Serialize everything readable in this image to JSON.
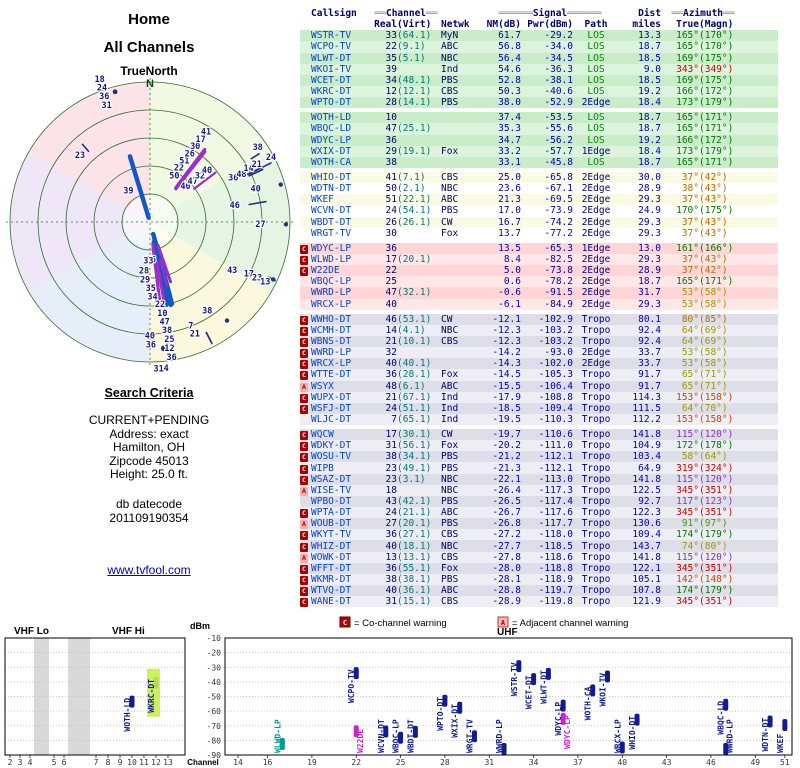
{
  "page": {
    "title": "Home",
    "subtitle": "All Channels",
    "orientation_label": "TrueNorth",
    "north": "N",
    "criteria_heading": "Search Criteria",
    "criteria_lines": [
      "CURRENT+PENDING",
      "Address: exact",
      "Hamilton, OH",
      "Zipcode 45013",
      "Height: 25.0 ft."
    ],
    "datecode_label": "db datecode",
    "datecode_value": "201109190354",
    "site_link": "www.tvfool.com"
  },
  "table_header": {
    "callsign": "Callsign",
    "channel": "Channel",
    "real": "Real",
    "virt": "(Virt)",
    "netwk": "Netwk",
    "signal": "Signal",
    "nm": "NM(dB)",
    "pwr": "Pwr(dBm)",
    "path": "Path",
    "dist": "Dist",
    "miles": "miles",
    "azimuth": "Azimuth",
    "az_true": "True",
    "az_magn": "(Magn)",
    "deco_ch": "══",
    "deco_sig": "══════",
    "deco_az": "══"
  },
  "legend": {
    "c_symbol": "C",
    "c_text": "= Co-channel warning",
    "a_symbol": "A",
    "a_text": "= Adjacent channel warning"
  },
  "charts": {
    "ylabel": "dBm",
    "xlabel": "Channel",
    "yticks": [
      -10,
      -20,
      -30,
      -40,
      -50,
      -60,
      -70,
      -80,
      -90
    ],
    "vhf_lo_title": "VHF Lo",
    "vhf_hi_title": "VHF Hi",
    "uhf_title": "UHF",
    "vhf_channels": [
      2,
      3,
      4,
      5,
      6,
      7,
      8,
      9,
      10,
      11,
      12,
      13
    ],
    "uhf_tick_channels": [
      14,
      16,
      19,
      22,
      25,
      28,
      31,
      34,
      37,
      40,
      43,
      46,
      49,
      51
    ]
  },
  "chart_data": {
    "type": [
      "table",
      "scatter",
      "bar"
    ],
    "radar": {
      "angle_field": "azt",
      "radius_field": "mi",
      "units": "degrees-true / miles"
    },
    "bar_panels": {
      "x_field": "ch",
      "y_field": "pwr",
      "y_units": "dBm",
      "ylim": [
        -90,
        -10
      ],
      "panels": [
        "VHF 2-13",
        "UHF 14-51"
      ]
    },
    "source": "stations"
  },
  "stations": [
    {
      "m": "",
      "call": "WSTR-TV",
      "ch": 33,
      "virt": "64.1",
      "net": "MyN",
      "nm": 61.7,
      "pwr": -29.2,
      "path": "LOS",
      "mi": 13.3,
      "azt": 165,
      "azm": 170,
      "grp": 1,
      "col": "#007700"
    },
    {
      "m": "",
      "call": "WCPO-TV",
      "ch": 22,
      "virt": "9.1",
      "net": "ABC",
      "nm": 56.8,
      "pwr": -34.0,
      "path": "LOS",
      "mi": 18.7,
      "azt": 165,
      "azm": 170,
      "grp": 1,
      "col": "#007700"
    },
    {
      "m": "",
      "call": "WLWT-DT",
      "ch": 35,
      "virt": "5.1",
      "net": "NBC",
      "nm": 56.4,
      "pwr": -34.5,
      "path": "LOS",
      "mi": 18.5,
      "azt": 169,
      "azm": 175,
      "grp": 1,
      "col": "#007700"
    },
    {
      "m": "",
      "call": "WKOI-TV",
      "ch": 39,
      "virt": "",
      "net": "Ind",
      "nm": 54.6,
      "pwr": -36.3,
      "path": "LOS",
      "mi": 9.0,
      "azt": 343,
      "azm": 349,
      "grp": 1,
      "col": "#cc0000"
    },
    {
      "m": "",
      "call": "WCET-DT",
      "ch": 34,
      "virt": "48.1",
      "net": "PBS",
      "nm": 52.8,
      "pwr": -38.1,
      "path": "LOS",
      "mi": 18.5,
      "azt": 169,
      "azm": 175,
      "grp": 1,
      "col": "#007700"
    },
    {
      "m": "",
      "call": "WKRC-DT",
      "ch": 12,
      "virt": "12.1",
      "net": "CBS",
      "nm": 50.3,
      "pwr": -40.6,
      "path": "LOS",
      "mi": 19.2,
      "azt": 166,
      "azm": 172,
      "grp": 1,
      "col": "#007700",
      "hl": true
    },
    {
      "m": "",
      "call": "WPTO-DT",
      "ch": 28,
      "virt": "14.1",
      "net": "PBS",
      "nm": 38.0,
      "pwr": -52.9,
      "path": "2Edge",
      "mi": 18.4,
      "azt": 173,
      "azm": 179,
      "grp": 1,
      "col": "#007700"
    },
    {
      "m": "",
      "call": "WOTH-LD",
      "ch": 10,
      "virt": "",
      "net": "",
      "nm": 37.4,
      "pwr": -53.5,
      "path": "LOS",
      "mi": 18.7,
      "azt": 165,
      "azm": 171,
      "grp": 2,
      "col": "#007700"
    },
    {
      "m": "",
      "call": "WBQC-LD",
      "ch": 47,
      "virt": "25.1",
      "net": "",
      "nm": 35.3,
      "pwr": -55.6,
      "path": "LOS",
      "mi": 18.7,
      "azt": 165,
      "azm": 171,
      "grp": 2,
      "col": "#007700"
    },
    {
      "m": "",
      "call": "WDYC-LP",
      "ch": 36,
      "virt": "",
      "net": "",
      "nm": 34.7,
      "pwr": -56.2,
      "path": "LOS",
      "mi": 19.2,
      "azt": 166,
      "azm": 172,
      "grp": 2,
      "col": "#007700"
    },
    {
      "m": "",
      "call": "WXIX-DT",
      "ch": 29,
      "virt": "19.1",
      "net": "Fox",
      "nm": 33.2,
      "pwr": -57.7,
      "path": "1Edge",
      "mi": 18.4,
      "azt": 173,
      "azm": 179,
      "grp": 2,
      "col": "#007700"
    },
    {
      "m": "",
      "call": "WOTH-CA",
      "ch": 38,
      "virt": "",
      "net": "",
      "nm": 33.1,
      "pwr": -45.8,
      "path": "LOS",
      "mi": 18.7,
      "azt": 165,
      "azm": 171,
      "grp": 2,
      "col": "#007700"
    },
    {
      "m": "",
      "call": "WHIO-DT",
      "ch": 41,
      "virt": "7.1",
      "net": "CBS",
      "nm": 25.0,
      "pwr": -65.8,
      "path": "2Edge",
      "mi": 30.0,
      "azt": 37,
      "azm": 42,
      "grp": 3,
      "col": "#bb6600"
    },
    {
      "m": "",
      "call": "WDTN-DT",
      "ch": 50,
      "virt": "2.1",
      "net": "NBC",
      "nm": 23.6,
      "pwr": -67.1,
      "path": "2Edge",
      "mi": 28.9,
      "azt": 38,
      "azm": 43,
      "grp": 3,
      "col": "#bb6600"
    },
    {
      "m": "",
      "call": "WKEF",
      "ch": 51,
      "virt": "22.1",
      "net": "ABC",
      "nm": 21.3,
      "pwr": -69.5,
      "path": "2Edge",
      "mi": 29.3,
      "azt": 37,
      "azm": 43,
      "grp": 3,
      "col": "#bb6600"
    },
    {
      "m": "",
      "call": "WCVN-DT",
      "ch": 24,
      "virt": "54.1",
      "net": "PBS",
      "nm": 17.0,
      "pwr": -73.9,
      "path": "2Edge",
      "mi": 24.9,
      "azt": 170,
      "azm": 175,
      "grp": 3,
      "col": "#007700"
    },
    {
      "m": "",
      "call": "WBDT-DT",
      "ch": 26,
      "virt": "26.1",
      "net": "CW",
      "nm": 16.7,
      "pwr": -74.2,
      "path": "2Edge",
      "mi": 29.3,
      "azt": 37,
      "azm": 43,
      "grp": 3,
      "col": "#bb6600"
    },
    {
      "m": "",
      "call": "WRGT-TV",
      "ch": 30,
      "virt": "",
      "net": "Fox",
      "nm": 13.7,
      "pwr": -77.2,
      "path": "2Edge",
      "mi": 29.3,
      "azt": 37,
      "azm": 43,
      "grp": 3,
      "col": "#bb6600"
    },
    {
      "m": "C",
      "call": "WDYC-LP",
      "ch": 36,
      "virt": "",
      "net": "",
      "nm": 13.5,
      "pwr": -65.3,
      "path": "1Edge",
      "mi": 13.0,
      "azt": 161,
      "azm": 166,
      "grp": 4,
      "col": "#007700",
      "bc": "#cc22cc"
    },
    {
      "m": "C",
      "call": "WLWD-LP",
      "ch": 17,
      "virt": "20.1",
      "net": "",
      "nm": 8.4,
      "pwr": -82.5,
      "path": "2Edge",
      "mi": 29.3,
      "azt": 37,
      "azm": 43,
      "grp": 4,
      "col": "#bb6600",
      "bc": "#009999"
    },
    {
      "m": "C",
      "call": "W22DE",
      "ch": 22,
      "virt": "",
      "net": "",
      "nm": 5.0,
      "pwr": -73.8,
      "path": "2Edge",
      "mi": 28.9,
      "azt": 37,
      "azm": 42,
      "grp": 4,
      "col": "#bb6600",
      "bc": "#cc22cc"
    },
    {
      "m": "",
      "call": "WBQC-LP",
      "ch": 25,
      "virt": "",
      "net": "",
      "nm": 0.6,
      "pwr": -78.2,
      "path": "2Edge",
      "mi": 18.7,
      "azt": 165,
      "azm": 171,
      "grp": 4,
      "col": "#007700"
    },
    {
      "m": "",
      "call": "WWRD-LP",
      "ch": 47,
      "virt": "32.1",
      "net": "",
      "nm": -0.6,
      "pwr": -91.5,
      "path": "2Edge",
      "mi": 31.7,
      "azt": 53,
      "azm": 58,
      "grp": 4,
      "col": "#999900"
    },
    {
      "m": "",
      "call": "WRCX-LP",
      "ch": 40,
      "virt": "",
      "net": "",
      "nm": -6.1,
      "pwr": -84.9,
      "path": "2Edge",
      "mi": 29.3,
      "azt": 53,
      "azm": 58,
      "grp": 4,
      "col": "#999900"
    },
    {
      "m": "C",
      "call": "WWHO-DT",
      "ch": 46,
      "virt": "53.1",
      "net": "CW",
      "nm": -12.1,
      "pwr": -102.9,
      "path": "Tropo",
      "mi": 80.1,
      "azt": 80,
      "azm": 85,
      "grp": 5,
      "col": "#bb6600"
    },
    {
      "m": "C",
      "call": "WCMH-DT",
      "ch": 14,
      "virt": "4.1",
      "net": "NBC",
      "nm": -12.3,
      "pwr": -103.2,
      "path": "Tropo",
      "mi": 92.4,
      "azt": 64,
      "azm": 69,
      "grp": 5,
      "col": "#999900"
    },
    {
      "m": "C",
      "call": "WBNS-DT",
      "ch": 21,
      "virt": "10.1",
      "net": "CBS",
      "nm": -12.3,
      "pwr": -103.2,
      "path": "Tropo",
      "mi": 92.4,
      "azt": 64,
      "azm": 69,
      "grp": 5,
      "col": "#999900"
    },
    {
      "m": "C",
      "call": "WWRD-LP",
      "ch": 32,
      "virt": "",
      "net": "",
      "nm": -14.2,
      "pwr": -93.0,
      "path": "2Edge",
      "mi": 33.7,
      "azt": 53,
      "azm": 58,
      "grp": 5,
      "col": "#999900"
    },
    {
      "m": "C",
      "call": "WRCX-LP",
      "ch": 40,
      "virt": "40.1",
      "net": "",
      "nm": -14.3,
      "pwr": -102.0,
      "path": "2Edge",
      "mi": 33.7,
      "azt": 53,
      "azm": 58,
      "grp": 5,
      "col": "#999900"
    },
    {
      "m": "C",
      "call": "WTTE-DT",
      "ch": 36,
      "virt": "28.1",
      "net": "Fox",
      "nm": -14.5,
      "pwr": -105.3,
      "path": "Tropo",
      "mi": 91.7,
      "azt": 65,
      "azm": 71,
      "grp": 5,
      "col": "#999900"
    },
    {
      "m": "A",
      "call": "WSYX",
      "ch": 48,
      "virt": "6.1",
      "net": "ABC",
      "nm": -15.5,
      "pwr": -106.4,
      "path": "Tropo",
      "mi": 91.7,
      "azt": 65,
      "azm": 71,
      "grp": 5,
      "col": "#999900"
    },
    {
      "m": "C",
      "call": "WUPX-DT",
      "ch": 21,
      "virt": "67.1",
      "net": "Ind",
      "nm": -17.9,
      "pwr": -108.8,
      "path": "Tropo",
      "mi": 114.3,
      "azt": 153,
      "azm": 158,
      "grp": 5,
      "col": "#cc4400"
    },
    {
      "m": "C",
      "call": "WSFJ-DT",
      "ch": 24,
      "virt": "51.1",
      "net": "Ind",
      "nm": -18.5,
      "pwr": -109.4,
      "path": "Tropo",
      "mi": 111.5,
      "azt": 64,
      "azm": 70,
      "grp": 5,
      "col": "#999900"
    },
    {
      "m": "",
      "call": "WLJC-DT",
      "ch": 7,
      "virt": "65.1",
      "net": "Ind",
      "nm": -19.5,
      "pwr": -110.3,
      "path": "Tropo",
      "mi": 112.2,
      "azt": 153,
      "azm": 158,
      "grp": 5,
      "col": "#cc4400"
    },
    {
      "m": "C",
      "call": "WQCW",
      "ch": 17,
      "virt": "30.1",
      "net": "CW",
      "nm": -19.7,
      "pwr": -110.6,
      "path": "Tropo",
      "mi": 141.8,
      "azt": 115,
      "azm": 120,
      "grp": 6,
      "col": "#8833bb"
    },
    {
      "m": "C",
      "call": "WDKY-DT",
      "ch": 31,
      "virt": "56.1",
      "net": "Fox",
      "nm": -20.2,
      "pwr": -111.0,
      "path": "Tropo",
      "mi": 104.9,
      "azt": 172,
      "azm": 178,
      "grp": 6,
      "col": "#007700"
    },
    {
      "m": "C",
      "call": "WOSU-TV",
      "ch": 38,
      "virt": "34.1",
      "net": "PBS",
      "nm": -21.2,
      "pwr": -112.1,
      "path": "Tropo",
      "mi": 103.4,
      "azt": 58,
      "azm": 64,
      "grp": 6,
      "col": "#999900"
    },
    {
      "m": "C",
      "call": "WIPB",
      "ch": 23,
      "virt": "49.1",
      "net": "PBS",
      "nm": -21.3,
      "pwr": -112.1,
      "path": "Tropo",
      "mi": 64.9,
      "azt": 319,
      "azm": 324,
      "grp": 6,
      "col": "#cc0000"
    },
    {
      "m": "C",
      "call": "WSAZ-DT",
      "ch": 23,
      "virt": "3.1",
      "net": "NBC",
      "nm": -22.1,
      "pwr": -113.0,
      "path": "Tropo",
      "mi": 141.8,
      "azt": 115,
      "azm": 120,
      "grp": 6,
      "col": "#8833bb"
    },
    {
      "m": "A",
      "call": "WISE-TV",
      "ch": 18,
      "virt": "",
      "net": "NBC",
      "nm": -26.4,
      "pwr": -117.3,
      "path": "Tropo",
      "mi": 122.5,
      "azt": 345,
      "azm": 351,
      "grp": 6,
      "col": "#cc0000"
    },
    {
      "m": "",
      "call": "WPBO-DT",
      "ch": 43,
      "virt": "42.1",
      "net": "PBS",
      "nm": -26.5,
      "pwr": -117.4,
      "path": "Tropo",
      "mi": 92.7,
      "azt": 117,
      "azm": 123,
      "grp": 6,
      "col": "#8833bb"
    },
    {
      "m": "C",
      "call": "WPTA-DT",
      "ch": 24,
      "virt": "21.1",
      "net": "ABC",
      "nm": -26.7,
      "pwr": -117.6,
      "path": "Tropo",
      "mi": 122.3,
      "azt": 345,
      "azm": 351,
      "grp": 6,
      "col": "#cc0000"
    },
    {
      "m": "A",
      "call": "WOUB-DT",
      "ch": 27,
      "virt": "20.1",
      "net": "PBS",
      "nm": -26.8,
      "pwr": -117.7,
      "path": "Tropo",
      "mi": 130.6,
      "azt": 91,
      "azm": 97,
      "grp": 6,
      "col": "#449900"
    },
    {
      "m": "C",
      "call": "WKYT-TV",
      "ch": 36,
      "virt": "27.1",
      "net": "CBS",
      "nm": -27.2,
      "pwr": -118.0,
      "path": "Tropo",
      "mi": 109.4,
      "azt": 174,
      "azm": 179,
      "grp": 6,
      "col": "#007700"
    },
    {
      "m": "C",
      "call": "WHIZ-DT",
      "ch": 40,
      "virt": "18.1",
      "net": "NBC",
      "nm": -27.7,
      "pwr": -118.5,
      "path": "Tropo",
      "mi": 143.7,
      "azt": 74,
      "azm": 80,
      "grp": 6,
      "col": "#999900"
    },
    {
      "m": "A",
      "call": "WOWK-DT",
      "ch": 13,
      "virt": "13.1",
      "net": "CBS",
      "nm": -27.8,
      "pwr": -118.6,
      "path": "Tropo",
      "mi": 141.8,
      "azt": 115,
      "azm": 120,
      "grp": 6,
      "col": "#8833bb"
    },
    {
      "m": "C",
      "call": "WFFT-DT",
      "ch": 36,
      "virt": "55.1",
      "net": "Fox",
      "nm": -28.0,
      "pwr": -118.8,
      "path": "Tropo",
      "mi": 122.1,
      "azt": 345,
      "azm": 351,
      "grp": 6,
      "col": "#cc0000"
    },
    {
      "m": "C",
      "call": "WKMR-DT",
      "ch": 38,
      "virt": "38.1",
      "net": "PBS",
      "nm": -28.1,
      "pwr": -118.9,
      "path": "Tropo",
      "mi": 105.1,
      "azt": 142,
      "azm": 148,
      "grp": 6,
      "col": "#cc4400"
    },
    {
      "m": "C",
      "call": "WTVQ-DT",
      "ch": 40,
      "virt": "36.1",
      "net": "ABC",
      "nm": -28.8,
      "pwr": -119.7,
      "path": "Tropo",
      "mi": 107.8,
      "azt": 174,
      "azm": 179,
      "grp": 6,
      "col": "#007700"
    },
    {
      "m": "C",
      "call": "WANE-DT",
      "ch": 31,
      "virt": "15.1",
      "net": "CBS",
      "nm": -28.9,
      "pwr": -119.8,
      "path": "Tropo",
      "mi": 121.9,
      "azt": 345,
      "azm": 351,
      "grp": 6,
      "col": "#cc0000"
    }
  ]
}
